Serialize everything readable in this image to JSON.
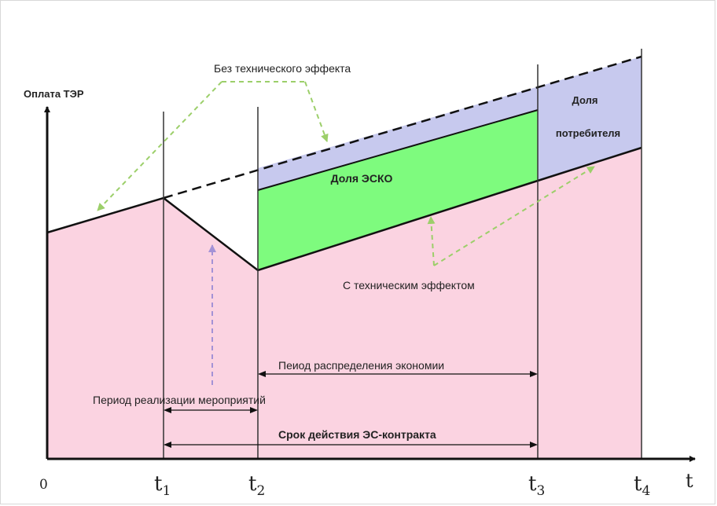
{
  "diagram": {
    "y_axis_label": "Оплата ТЭР",
    "x_axis_label": "t",
    "origin_label": "0",
    "ticks": [
      {
        "main": "t",
        "sub": "1"
      },
      {
        "main": "t",
        "sub": "2"
      },
      {
        "main": "t",
        "sub": "3"
      },
      {
        "main": "t",
        "sub": "4"
      }
    ],
    "labels": {
      "without_effect": "Без технического эффекта",
      "with_effect": "С техническим эффектом",
      "esco_share": "Доля ЭСКО",
      "consumer_share_line1": "Доля",
      "consumer_share_line2": "потребителя",
      "savings_period": "Пеиод распределения экономии",
      "implementation_period": "Период реализации мероприятий",
      "contract_term": "Срок действия ЭС-контракта"
    },
    "colors": {
      "base_area": "#fbd3e1",
      "esco_area": "#7efb7e",
      "consumer_area": "#c7c9ee",
      "pointer_green": "#9ccf6a",
      "pointer_purple": "#a492d6"
    }
  }
}
